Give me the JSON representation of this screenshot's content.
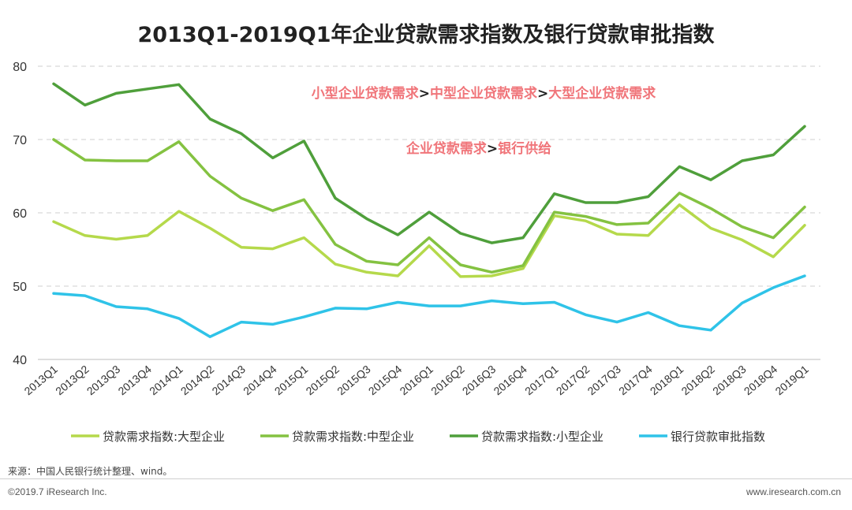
{
  "title": "2013Q1-2019Q1年企业贷款需求指数及银行贷款审批指数",
  "annotations": [
    {
      "parts": [
        {
          "text": "小型企业贷款需求",
          "color": "#f0757a"
        },
        {
          "text": ">",
          "color": "#222222"
        },
        {
          "text": "中型企业贷款需求",
          "color": "#f0757a"
        },
        {
          "text": ">",
          "color": "#222222"
        },
        {
          "text": "大型企业贷款需求",
          "color": "#f0757a"
        }
      ]
    },
    {
      "parts": [
        {
          "text": "企业贷款需求",
          "color": "#f0757a"
        },
        {
          "text": ">",
          "color": "#222222"
        },
        {
          "text": "银行供给",
          "color": "#f0757a"
        }
      ]
    }
  ],
  "chart_data": {
    "type": "line",
    "title": "2013Q1-2019Q1年企业贷款需求指数及银行贷款审批指数",
    "xlabel": "",
    "ylabel": "",
    "ylim": [
      40,
      80
    ],
    "yticks": [
      40,
      50,
      60,
      70,
      80
    ],
    "grid": true,
    "legend_position": "bottom",
    "categories": [
      "2013Q1",
      "2013Q2",
      "2013Q3",
      "2013Q4",
      "2014Q1",
      "2014Q2",
      "2014Q3",
      "2014Q4",
      "2015Q1",
      "2015Q2",
      "2015Q3",
      "2015Q4",
      "2016Q1",
      "2016Q2",
      "2016Q3",
      "2016Q4",
      "2017Q1",
      "2017Q2",
      "2017Q3",
      "2017Q4",
      "2018Q1",
      "2018Q2",
      "2018Q3",
      "2018Q4",
      "2019Q1"
    ],
    "series": [
      {
        "name": "贷款需求指数:大型企业",
        "color": "#b5d94b",
        "values": [
          58.8,
          56.9,
          56.4,
          56.9,
          60.2,
          57.9,
          55.3,
          55.1,
          56.6,
          53.0,
          51.9,
          51.4,
          55.5,
          51.3,
          51.4,
          52.4,
          59.6,
          58.9,
          57.1,
          56.9,
          61.1,
          57.9,
          56.3,
          54.0,
          58.3
        ]
      },
      {
        "name": "贷款需求指数:中型企业",
        "color": "#84c241",
        "values": [
          70.0,
          67.2,
          67.1,
          67.1,
          69.7,
          65.0,
          62.0,
          60.3,
          61.8,
          55.7,
          53.4,
          52.9,
          56.6,
          52.9,
          51.9,
          52.8,
          60.1,
          59.5,
          58.4,
          58.6,
          62.7,
          60.6,
          58.1,
          56.6,
          60.8
        ]
      },
      {
        "name": "贷款需求指数:小型企业",
        "color": "#4f9f3b",
        "values": [
          77.6,
          74.7,
          76.3,
          76.9,
          77.5,
          72.8,
          70.8,
          67.5,
          69.8,
          62.0,
          59.2,
          57.0,
          60.1,
          57.2,
          55.9,
          56.6,
          62.6,
          61.4,
          61.4,
          62.2,
          66.3,
          64.5,
          67.1,
          67.9,
          71.8
        ]
      },
      {
        "name": "银行贷款审批指数",
        "color": "#2fc3e8",
        "values": [
          49.0,
          48.7,
          47.2,
          46.9,
          45.6,
          43.1,
          45.1,
          44.8,
          45.8,
          47.0,
          46.9,
          47.8,
          47.3,
          47.3,
          48.0,
          47.6,
          47.8,
          46.1,
          45.1,
          46.4,
          44.6,
          44.0,
          47.7,
          49.8,
          51.4
        ]
      }
    ]
  },
  "footer": {
    "source": "来源：中国人民银行统计整理、wind。",
    "copyright": "©2019.7 iResearch Inc.",
    "website": "www.iresearch.com.cn"
  }
}
